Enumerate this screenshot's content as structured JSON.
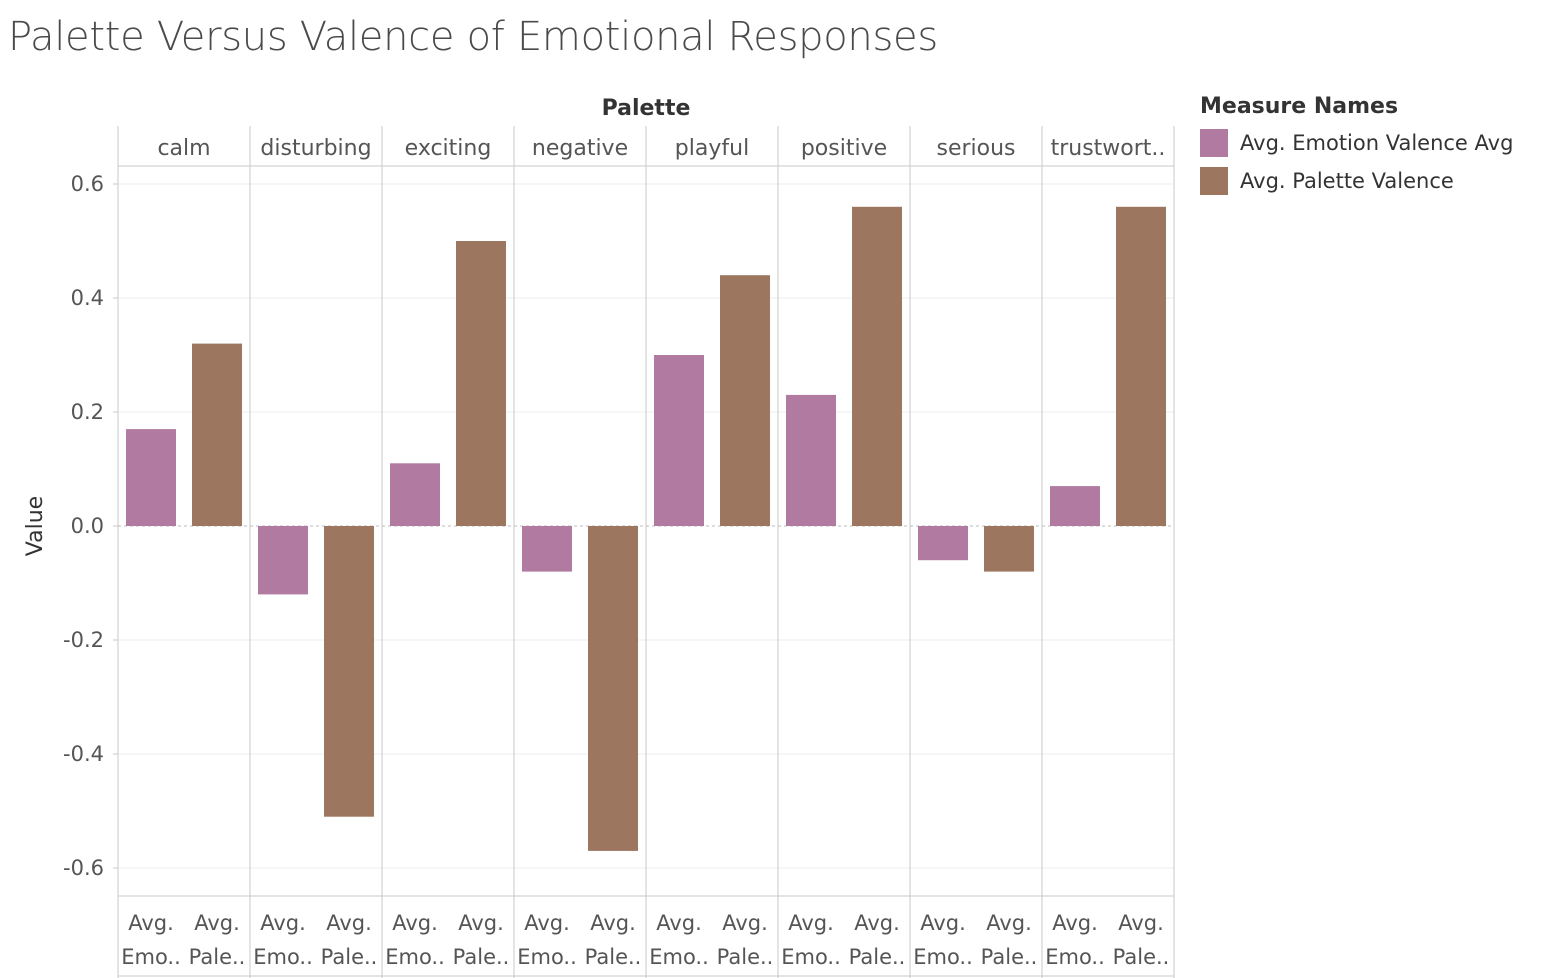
{
  "title": "Palette Versus Valence of Emotional Responses",
  "legend": {
    "title": "Measure Names",
    "items": [
      {
        "label": "Avg. Emotion Valence Avg",
        "color": "#b07aa1"
      },
      {
        "label": "Avg. Palette Valence",
        "color": "#9c765e"
      }
    ]
  },
  "chart_data": {
    "type": "bar",
    "title": "Palette Versus Valence of Emotional Responses",
    "column_header": "Palette",
    "ylabel": "Value",
    "ylim": [
      -0.62,
      0.62
    ],
    "yticks": [
      "0.6",
      "0.4",
      "0.2",
      "0.0",
      "-0.2",
      "-0.4",
      "-0.6"
    ],
    "ytick_values": [
      0.6,
      0.4,
      0.2,
      0.0,
      -0.2,
      -0.4,
      -0.6
    ],
    "grid": true,
    "legend_position": "right",
    "categories": [
      "calm",
      "disturbing",
      "exciting",
      "negative",
      "playful",
      "positive",
      "serious",
      "trustwort.."
    ],
    "bar_labels": [
      [
        "Avg.",
        "Emo.."
      ],
      [
        "Avg.",
        "Pale.."
      ]
    ],
    "series": [
      {
        "name": "Avg. Emotion Valence Avg",
        "color": "#b07aa1",
        "values": [
          0.17,
          -0.12,
          0.11,
          -0.08,
          0.3,
          0.23,
          -0.06,
          0.07
        ]
      },
      {
        "name": "Avg. Palette Valence",
        "color": "#9c765e",
        "values": [
          0.32,
          -0.51,
          0.5,
          -0.57,
          0.44,
          0.56,
          -0.08,
          0.56
        ]
      }
    ]
  }
}
